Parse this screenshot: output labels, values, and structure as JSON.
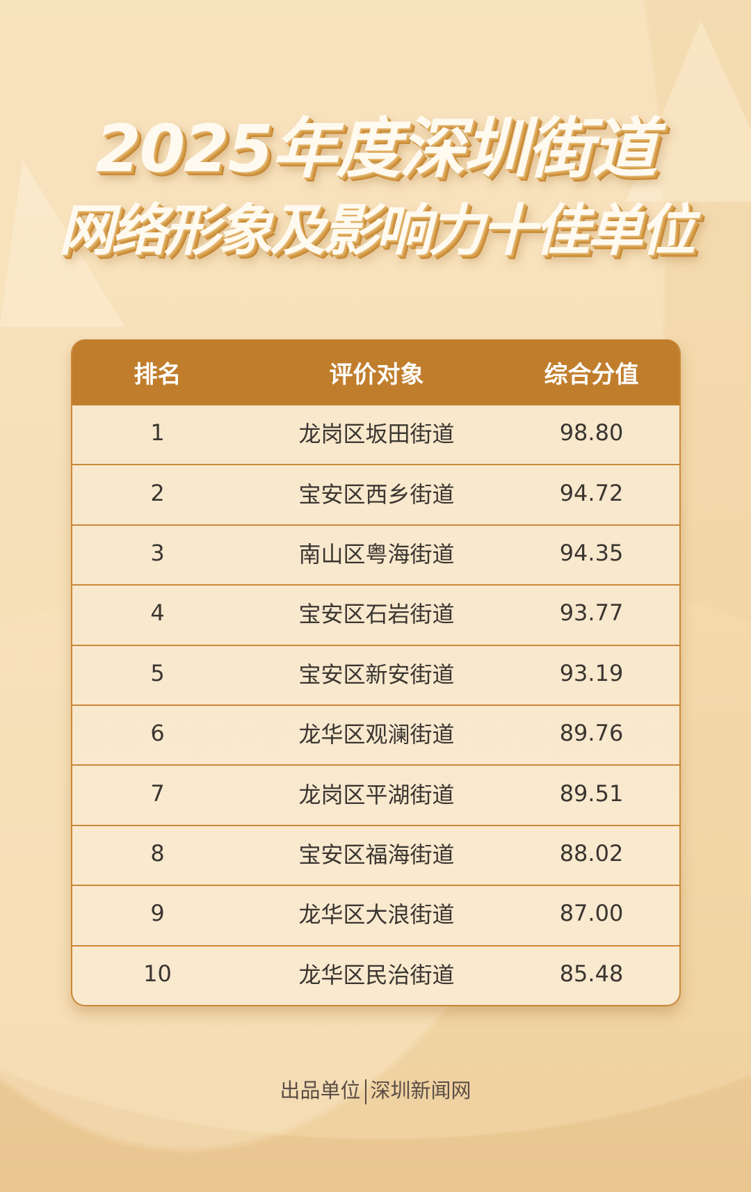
{
  "title": {
    "line1": "2025年度深圳街道",
    "line2": "网络形象及影响力十佳单位"
  },
  "table": {
    "headers": [
      "排名",
      "评价对象",
      "综合分值"
    ],
    "rows": [
      {
        "rank": "1",
        "name": "龙岗区坂田街道",
        "score": "98.80"
      },
      {
        "rank": "2",
        "name": "宝安区西乡街道",
        "score": "94.72"
      },
      {
        "rank": "3",
        "name": "南山区粤海街道",
        "score": "94.35"
      },
      {
        "rank": "4",
        "name": "宝安区石岩街道",
        "score": "93.77"
      },
      {
        "rank": "5",
        "name": "宝安区新安街道",
        "score": "93.19"
      },
      {
        "rank": "6",
        "name": "龙华区观澜街道",
        "score": "89.76"
      },
      {
        "rank": "7",
        "name": "龙岗区平湖街道",
        "score": "89.51"
      },
      {
        "rank": "8",
        "name": "宝安区福海街道",
        "score": "88.02"
      },
      {
        "rank": "9",
        "name": "龙华区大浪街道",
        "score": "87.00"
      },
      {
        "rank": "10",
        "name": "龙华区民治街道",
        "score": "85.48"
      }
    ]
  },
  "footer": {
    "label": "出品单位",
    "publisher": "深圳新闻网"
  },
  "colors": {
    "header_bg": "#c07e2d",
    "row_bg": "#f8e8cc",
    "border": "#c98838",
    "background": "#f2d7a8"
  }
}
